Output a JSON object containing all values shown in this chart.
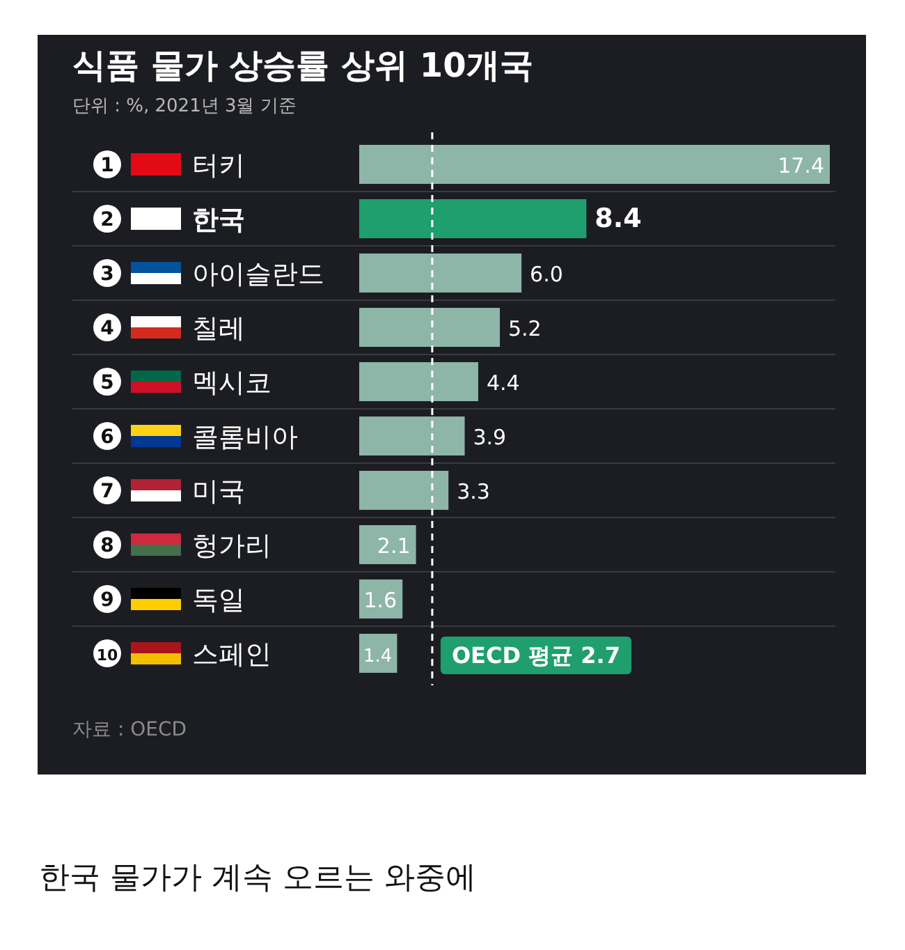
{
  "chart_data": {
    "type": "bar",
    "orientation": "horizontal",
    "title": "식품 물가 상승률 상위 10개국",
    "subtitle": "단위 : %, 2021년 3월 기준",
    "categories": [
      "1 터키",
      "2 한국",
      "3 아이슬란드",
      "4 칠레",
      "5 멕시코",
      "6 콜롬비아",
      "7 미국",
      "8 헝가리",
      "9 독일",
      "10 스페인"
    ],
    "values": [
      17.4,
      8.4,
      6.0,
      5.2,
      4.4,
      3.9,
      3.3,
      2.1,
      1.6,
      1.4
    ],
    "colors": [
      "#8db5a8",
      "#1f9e6e",
      "#8db5a8",
      "#8db5a8",
      "#8db5a8",
      "#8db5a8",
      "#8db5a8",
      "#8db5a8",
      "#8db5a8",
      "#8db5a8"
    ],
    "value_labels": [
      "17.4",
      "8.4",
      "6.0",
      "5.2",
      "4.4",
      "3.9",
      "3.3",
      "2.1",
      "1.6",
      "1.4"
    ],
    "ref_lines": [
      {
        "axis": "x",
        "value": 2.7,
        "label": "OECD 평균 2.7",
        "color": "#ffffff",
        "line_style": "dashed"
      }
    ],
    "annotations": [
      "자료 : OECD",
      "한국 물가가 계속 오르는 와중에"
    ]
  }
}
